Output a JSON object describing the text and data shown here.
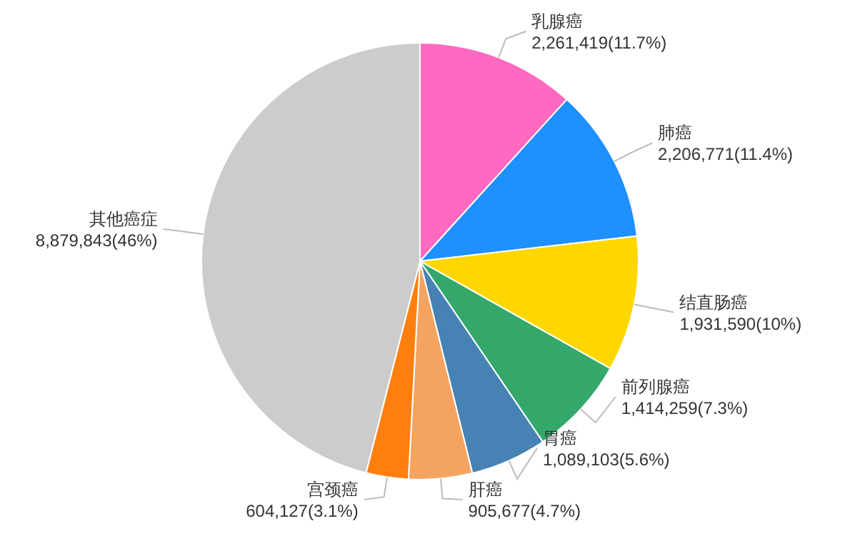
{
  "chart_data": {
    "type": "pie",
    "categories": [
      "乳腺癌",
      "肺癌",
      "结直肠癌",
      "前列腺癌",
      "胃癌",
      "肝癌",
      "宫颈癌",
      "其他癌症"
    ],
    "values": [
      2261419,
      2206771,
      1931590,
      1414259,
      1089103,
      905677,
      604127,
      8879843
    ],
    "value_labels": [
      "2,261,419(11.7%)",
      "2,206,771(11.4%)",
      "1,931,590(10%)",
      "1,414,259(7.3%)",
      "1,089,103(5.6%)",
      "905,677(4.7%)",
      "604,127(3.1%)",
      "8,879,843(46%)"
    ],
    "colors": [
      "#ff69c0",
      "#1e90ff",
      "#ffd700",
      "#33a86a",
      "#4682b4",
      "#f4a460",
      "#ff7f0e",
      "#cccccc"
    ]
  }
}
